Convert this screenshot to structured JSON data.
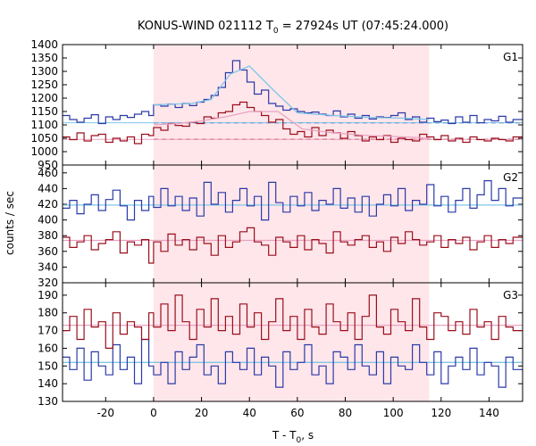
{
  "chart_data": {
    "type": "line",
    "title_main": "KONUS-WIND 021112 T",
    "title_sub": "0",
    "title_rest": " = 27924s UT (07:45:24.000)",
    "xlabel_main": "T - T",
    "xlabel_sub": "0",
    "xlabel_rest": ", s",
    "ylabel": "counts / sec",
    "xlim": [
      -38,
      154
    ],
    "xticks": [
      -20,
      0,
      20,
      40,
      60,
      80,
      100,
      120,
      140
    ],
    "shaded_interval": [
      0,
      115
    ],
    "colors": {
      "shade": "#ffe6ea",
      "blue": "#2b3aa8",
      "red": "#9a0f1c",
      "cyan": "#7ec6e8",
      "pink": "#e8a3c2"
    },
    "panels": [
      {
        "name": "G1",
        "ylim": [
          950,
          1400
        ],
        "yticks": [
          950,
          1000,
          1050,
          1100,
          1150,
          1200,
          1250,
          1300,
          1350,
          1400
        ],
        "blue_bg": 1108,
        "red_bg": 1046,
        "blue_x": [
          -38,
          -35,
          -32,
          -29,
          -26,
          -23,
          -20,
          -17,
          -14,
          -11,
          -8,
          -5,
          -2,
          0,
          3,
          6,
          9,
          12,
          15,
          18,
          21,
          24,
          27,
          30,
          33,
          36,
          39,
          42,
          45,
          48,
          51,
          54,
          57,
          60,
          63,
          66,
          69,
          72,
          75,
          78,
          81,
          84,
          87,
          90,
          93,
          96,
          99,
          102,
          105,
          108,
          111,
          114,
          117,
          120,
          123,
          126,
          129,
          132,
          135,
          138,
          141,
          144,
          147,
          150
        ],
        "blue_y": [
          1135,
          1120,
          1110,
          1125,
          1138,
          1105,
          1130,
          1120,
          1135,
          1128,
          1140,
          1150,
          1135,
          1175,
          1170,
          1178,
          1165,
          1180,
          1172,
          1185,
          1195,
          1210,
          1240,
          1295,
          1340,
          1305,
          1260,
          1215,
          1230,
          1180,
          1170,
          1155,
          1160,
          1150,
          1145,
          1148,
          1140,
          1135,
          1152,
          1130,
          1140,
          1125,
          1135,
          1122,
          1130,
          1128,
          1135,
          1145,
          1120,
          1130,
          1110,
          1125,
          1112,
          1118,
          1105,
          1130,
          1110,
          1135,
          1108,
          1120,
          1115,
          1132,
          1110,
          1120
        ],
        "red_x": [
          -38,
          -35,
          -32,
          -29,
          -26,
          -23,
          -20,
          -17,
          -14,
          -11,
          -8,
          -5,
          -2,
          0,
          3,
          6,
          9,
          12,
          15,
          18,
          21,
          24,
          27,
          30,
          33,
          36,
          39,
          42,
          45,
          48,
          51,
          54,
          57,
          60,
          63,
          66,
          69,
          72,
          75,
          78,
          81,
          84,
          87,
          90,
          93,
          96,
          99,
          102,
          105,
          108,
          111,
          114,
          117,
          120,
          123,
          126,
          129,
          132,
          135,
          138,
          141,
          144,
          147,
          150
        ],
        "red_y": [
          1055,
          1045,
          1070,
          1040,
          1060,
          1065,
          1035,
          1050,
          1040,
          1055,
          1030,
          1065,
          1060,
          1090,
          1080,
          1105,
          1098,
          1095,
          1110,
          1105,
          1130,
          1125,
          1145,
          1150,
          1175,
          1185,
          1165,
          1150,
          1135,
          1110,
          1120,
          1085,
          1065,
          1075,
          1055,
          1090,
          1060,
          1080,
          1070,
          1050,
          1075,
          1060,
          1040,
          1055,
          1045,
          1060,
          1035,
          1050,
          1045,
          1040,
          1065,
          1055,
          1045,
          1060,
          1040,
          1050,
          1035,
          1055,
          1045,
          1040,
          1050,
          1045,
          1040,
          1055
        ],
        "blue_fit_x": [
          0,
          16,
          24,
          32,
          40,
          50,
          60,
          75,
          90,
          105,
          115
        ],
        "blue_fit_y": [
          1175,
          1180,
          1195,
          1290,
          1320,
          1230,
          1145,
          1135,
          1128,
          1125,
          1120
        ],
        "red_fit_x": [
          0,
          10,
          20,
          30,
          40,
          52,
          62,
          75,
          90,
          105,
          115
        ],
        "red_fit_y": [
          1100,
          1105,
          1115,
          1130,
          1150,
          1150,
          1085,
          1070,
          1060,
          1055,
          1050
        ]
      },
      {
        "name": "G2",
        "ylim": [
          320,
          470
        ],
        "yticks": [
          320,
          340,
          360,
          380,
          400,
          420,
          440,
          460
        ],
        "blue_fit": 419,
        "red_fit": 374,
        "blue_x": [
          -38,
          -35,
          -32,
          -29,
          -26,
          -23,
          -20,
          -17,
          -14,
          -11,
          -8,
          -5,
          -2,
          0,
          3,
          6,
          9,
          12,
          15,
          18,
          21,
          24,
          27,
          30,
          33,
          36,
          39,
          42,
          45,
          48,
          51,
          54,
          57,
          60,
          63,
          66,
          69,
          72,
          75,
          78,
          81,
          84,
          87,
          90,
          93,
          96,
          99,
          102,
          105,
          108,
          111,
          114,
          117,
          120,
          123,
          126,
          129,
          132,
          135,
          138,
          141,
          144,
          147,
          150
        ],
        "blue_y": [
          415,
          425,
          408,
          420,
          432,
          412,
          426,
          438,
          418,
          400,
          425,
          412,
          430,
          416,
          440,
          418,
          430,
          412,
          428,
          405,
          448,
          420,
          435,
          410,
          425,
          440,
          418,
          430,
          400,
          448,
          422,
          410,
          430,
          418,
          435,
          412,
          425,
          420,
          440,
          415,
          428,
          410,
          430,
          405,
          420,
          432,
          418,
          440,
          412,
          425,
          420,
          445,
          418,
          430,
          410,
          425,
          440,
          415,
          432,
          450,
          425,
          440,
          418,
          428
        ],
        "red_x": [
          -38,
          -35,
          -32,
          -29,
          -26,
          -23,
          -20,
          -17,
          -14,
          -11,
          -8,
          -5,
          -2,
          0,
          3,
          6,
          9,
          12,
          15,
          18,
          21,
          24,
          27,
          30,
          33,
          36,
          39,
          42,
          45,
          48,
          51,
          54,
          57,
          60,
          63,
          66,
          69,
          72,
          75,
          78,
          81,
          84,
          87,
          90,
          93,
          96,
          99,
          102,
          105,
          108,
          111,
          114,
          117,
          120,
          123,
          126,
          129,
          132,
          135,
          138,
          141,
          144,
          147,
          150
        ],
        "red_y": [
          378,
          365,
          372,
          380,
          362,
          370,
          375,
          385,
          358,
          372,
          368,
          375,
          345,
          372,
          360,
          382,
          368,
          375,
          362,
          378,
          370,
          355,
          380,
          365,
          372,
          385,
          390,
          372,
          368,
          355,
          378,
          372,
          365,
          380,
          362,
          375,
          370,
          358,
          385,
          372,
          368,
          375,
          380,
          365,
          372,
          360,
          378,
          370,
          385,
          375,
          368,
          372,
          380,
          365,
          375,
          370,
          378,
          362,
          372,
          380,
          365,
          375,
          370,
          378
        ]
      },
      {
        "name": "G3",
        "ylim": [
          130,
          197
        ],
        "yticks": [
          130,
          140,
          150,
          160,
          170,
          180,
          190
        ],
        "blue_fit": 152,
        "red_fit": 173,
        "blue_x": [
          -38,
          -35,
          -32,
          -29,
          -26,
          -23,
          -20,
          -17,
          -14,
          -11,
          -8,
          -5,
          -2,
          0,
          3,
          6,
          9,
          12,
          15,
          18,
          21,
          24,
          27,
          30,
          33,
          36,
          39,
          42,
          45,
          48,
          51,
          54,
          57,
          60,
          63,
          66,
          69,
          72,
          75,
          78,
          81,
          84,
          87,
          90,
          93,
          96,
          99,
          102,
          105,
          108,
          111,
          114,
          117,
          120,
          123,
          126,
          129,
          132,
          135,
          138,
          141,
          144,
          147,
          150
        ],
        "blue_y": [
          155,
          148,
          160,
          142,
          158,
          150,
          145,
          162,
          148,
          155,
          140,
          165,
          150,
          145,
          152,
          140,
          158,
          148,
          155,
          162,
          145,
          150,
          140,
          158,
          152,
          148,
          160,
          145,
          155,
          150,
          138,
          158,
          148,
          152,
          162,
          145,
          150,
          140,
          158,
          155,
          148,
          162,
          150,
          145,
          158,
          140,
          155,
          150,
          148,
          162,
          152,
          145,
          158,
          140,
          150,
          155,
          148,
          160,
          145,
          152,
          150,
          138,
          155,
          148
        ],
        "red_x": [
          -38,
          -35,
          -32,
          -29,
          -26,
          -23,
          -20,
          -17,
          -14,
          -11,
          -8,
          -5,
          -2,
          0,
          3,
          6,
          9,
          12,
          15,
          18,
          21,
          24,
          27,
          30,
          33,
          36,
          39,
          42,
          45,
          48,
          51,
          54,
          57,
          60,
          63,
          66,
          69,
          72,
          75,
          78,
          81,
          84,
          87,
          90,
          93,
          96,
          99,
          102,
          105,
          108,
          111,
          114,
          117,
          120,
          123,
          126,
          129,
          132,
          135,
          138,
          141,
          144,
          147,
          150
        ],
        "red_y": [
          170,
          178,
          165,
          182,
          172,
          175,
          160,
          180,
          168,
          175,
          172,
          165,
          180,
          172,
          185,
          170,
          190,
          175,
          165,
          182,
          172,
          188,
          170,
          178,
          168,
          185,
          172,
          180,
          165,
          175,
          188,
          170,
          178,
          165,
          182,
          172,
          168,
          185,
          175,
          170,
          180,
          165,
          178,
          190,
          172,
          168,
          182,
          175,
          170,
          188,
          172,
          165,
          180,
          178,
          170,
          175,
          168,
          182,
          172,
          175,
          165,
          178,
          172,
          170
        ]
      }
    ]
  }
}
